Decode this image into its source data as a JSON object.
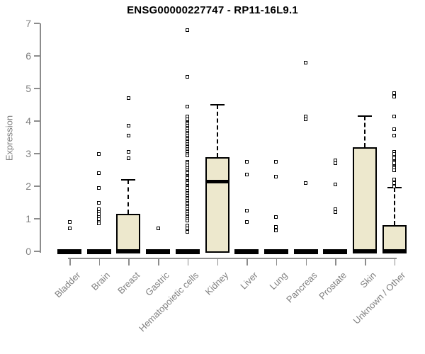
{
  "header": {
    "title": "ENSG00000227747 - RP11-16L9.1"
  },
  "chart_data": {
    "type": "boxplot",
    "title": "ENSG00000227747 - RP11-16L9.1",
    "xlabel": "",
    "ylabel": "Expression",
    "ylim": [
      0,
      7
    ],
    "yticks": [
      0,
      1,
      2,
      3,
      4,
      5,
      6,
      7
    ],
    "grid": false,
    "legend": false,
    "categories": [
      "Bladder",
      "Brain",
      "Breast",
      "Gastric",
      "Hematopoietic cells",
      "Kidney",
      "Liver",
      "Lung",
      "Pancreas",
      "Prostate",
      "Skin",
      "Unknown / Other"
    ],
    "colors": {
      "box_fill": "#ede8cd",
      "box_border": "#000000",
      "axis": "#8c8c8c",
      "tick_text": "#808080",
      "title_text": "#000000"
    },
    "boxes": [
      {
        "category": "Bladder",
        "q1": 0,
        "median": 0,
        "q3": 0,
        "whisker_low": 0,
        "whisker_high": 0,
        "outliers": [
          0.9,
          0.7
        ]
      },
      {
        "category": "Brain",
        "q1": 0,
        "median": 0,
        "q3": 0,
        "whisker_low": 0,
        "whisker_high": 0,
        "outliers": [
          3.0,
          2.4,
          1.95,
          1.5,
          1.3,
          1.2,
          1.15,
          1.05,
          1.0,
          0.9,
          0.85
        ]
      },
      {
        "category": "Breast",
        "q1": 0,
        "median": 0,
        "q3": 1.15,
        "whisker_low": 0,
        "whisker_high": 2.2,
        "outliers": [
          4.7,
          3.85,
          3.55,
          3.05,
          2.85
        ]
      },
      {
        "category": "Gastric",
        "q1": 0,
        "median": 0,
        "q3": 0,
        "whisker_low": 0,
        "whisker_high": 0,
        "outliers": [
          0.7
        ]
      },
      {
        "category": "Hematopoietic cells",
        "q1": 0,
        "median": 0,
        "q3": 0,
        "whisker_low": 0,
        "whisker_high": 0,
        "outliers": [
          6.8,
          5.35,
          4.45,
          4.15,
          4.05,
          3.95,
          3.9,
          3.85,
          3.8,
          3.75,
          3.7,
          3.65,
          3.6,
          3.55,
          3.5,
          3.45,
          3.4,
          3.35,
          3.3,
          3.25,
          3.2,
          3.15,
          3.1,
          3.05,
          3.0,
          2.95,
          2.75,
          2.7,
          2.65,
          2.55,
          2.5,
          2.45,
          2.4,
          2.3,
          2.25,
          2.15,
          2.1,
          2.0,
          1.95,
          1.85,
          1.8,
          1.75,
          1.7,
          1.65,
          1.6,
          1.55,
          1.5,
          1.45,
          1.4,
          1.35,
          1.3,
          1.25,
          1.2,
          1.15,
          1.1,
          1.05,
          1.0,
          0.95,
          0.8,
          0.7,
          0.6
        ]
      },
      {
        "category": "Kidney",
        "q1": 0,
        "median": 2.15,
        "q3": 2.9,
        "whisker_low": 0,
        "whisker_high": 4.5,
        "outliers": []
      },
      {
        "category": "Liver",
        "q1": 0,
        "median": 0,
        "q3": 0,
        "whisker_low": 0,
        "whisker_high": 0,
        "outliers": [
          2.75,
          2.35,
          1.25,
          0.9
        ]
      },
      {
        "category": "Lung",
        "q1": 0,
        "median": 0,
        "q3": 0,
        "whisker_low": 0,
        "whisker_high": 0,
        "outliers": [
          2.75,
          2.3,
          1.05,
          0.75,
          0.65
        ]
      },
      {
        "category": "Pancreas",
        "q1": 0,
        "median": 0,
        "q3": 0,
        "whisker_low": 0,
        "whisker_high": 0,
        "outliers": [
          5.8,
          4.15,
          4.05,
          2.1
        ]
      },
      {
        "category": "Prostate",
        "q1": 0,
        "median": 0,
        "q3": 0,
        "whisker_low": 0,
        "whisker_high": 0,
        "outliers": [
          2.8,
          2.7,
          2.05,
          1.3,
          1.2
        ]
      },
      {
        "category": "Skin",
        "q1": 0,
        "median": 0,
        "q3": 3.2,
        "whisker_low": 0,
        "whisker_high": 4.15,
        "outliers": []
      },
      {
        "category": "Unknown / Other",
        "q1": 0,
        "median": 0,
        "q3": 0.8,
        "whisker_low": 0,
        "whisker_high": 1.95,
        "outliers": [
          4.85,
          4.75,
          4.15,
          3.75,
          3.55,
          3.05,
          3.0,
          2.9,
          2.85,
          2.75,
          2.7,
          2.6,
          2.55,
          2.5,
          2.2,
          2.1,
          2.0
        ]
      }
    ]
  }
}
